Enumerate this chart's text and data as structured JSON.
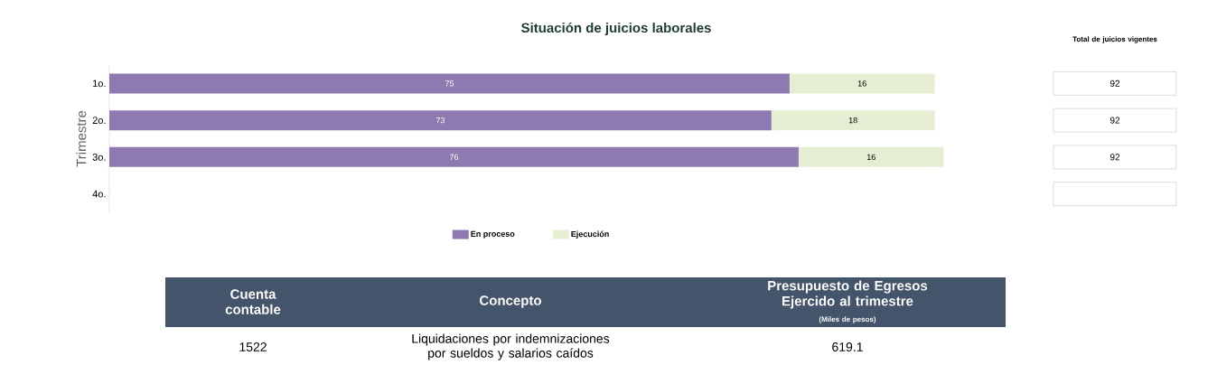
{
  "chart_data": [
    {
      "type": "bar",
      "orientation": "horizontal",
      "stacked": true,
      "title": "Situación de juicios laborales",
      "ylabel": "Trimestre",
      "categories": [
        "1o.",
        "2o.",
        "3o.",
        "4o."
      ],
      "series": [
        {
          "name": "En proceso",
          "color": "#8e79b0",
          "values": [
            75,
            73,
            76,
            null
          ]
        },
        {
          "name": "Ejecución",
          "color": "#e5edd3",
          "values": [
            16,
            18,
            16,
            null
          ]
        }
      ],
      "data_labels": true,
      "legend": "bottom"
    },
    {
      "type": "other",
      "title": "Total de juicios vigentes",
      "annotations": [
        "92",
        "92",
        "92"
      ]
    },
    {
      "type": "other",
      "annotations": [
        "Cuenta contable",
        "Concepto",
        "Presupuesto de Egresos Ejercido al trimestre",
        "(Miles de pesos)",
        "1522",
        "Liquidaciones por indemnizaciones por sueldos y salarios caídos",
        "619.1"
      ]
    }
  ]
}
